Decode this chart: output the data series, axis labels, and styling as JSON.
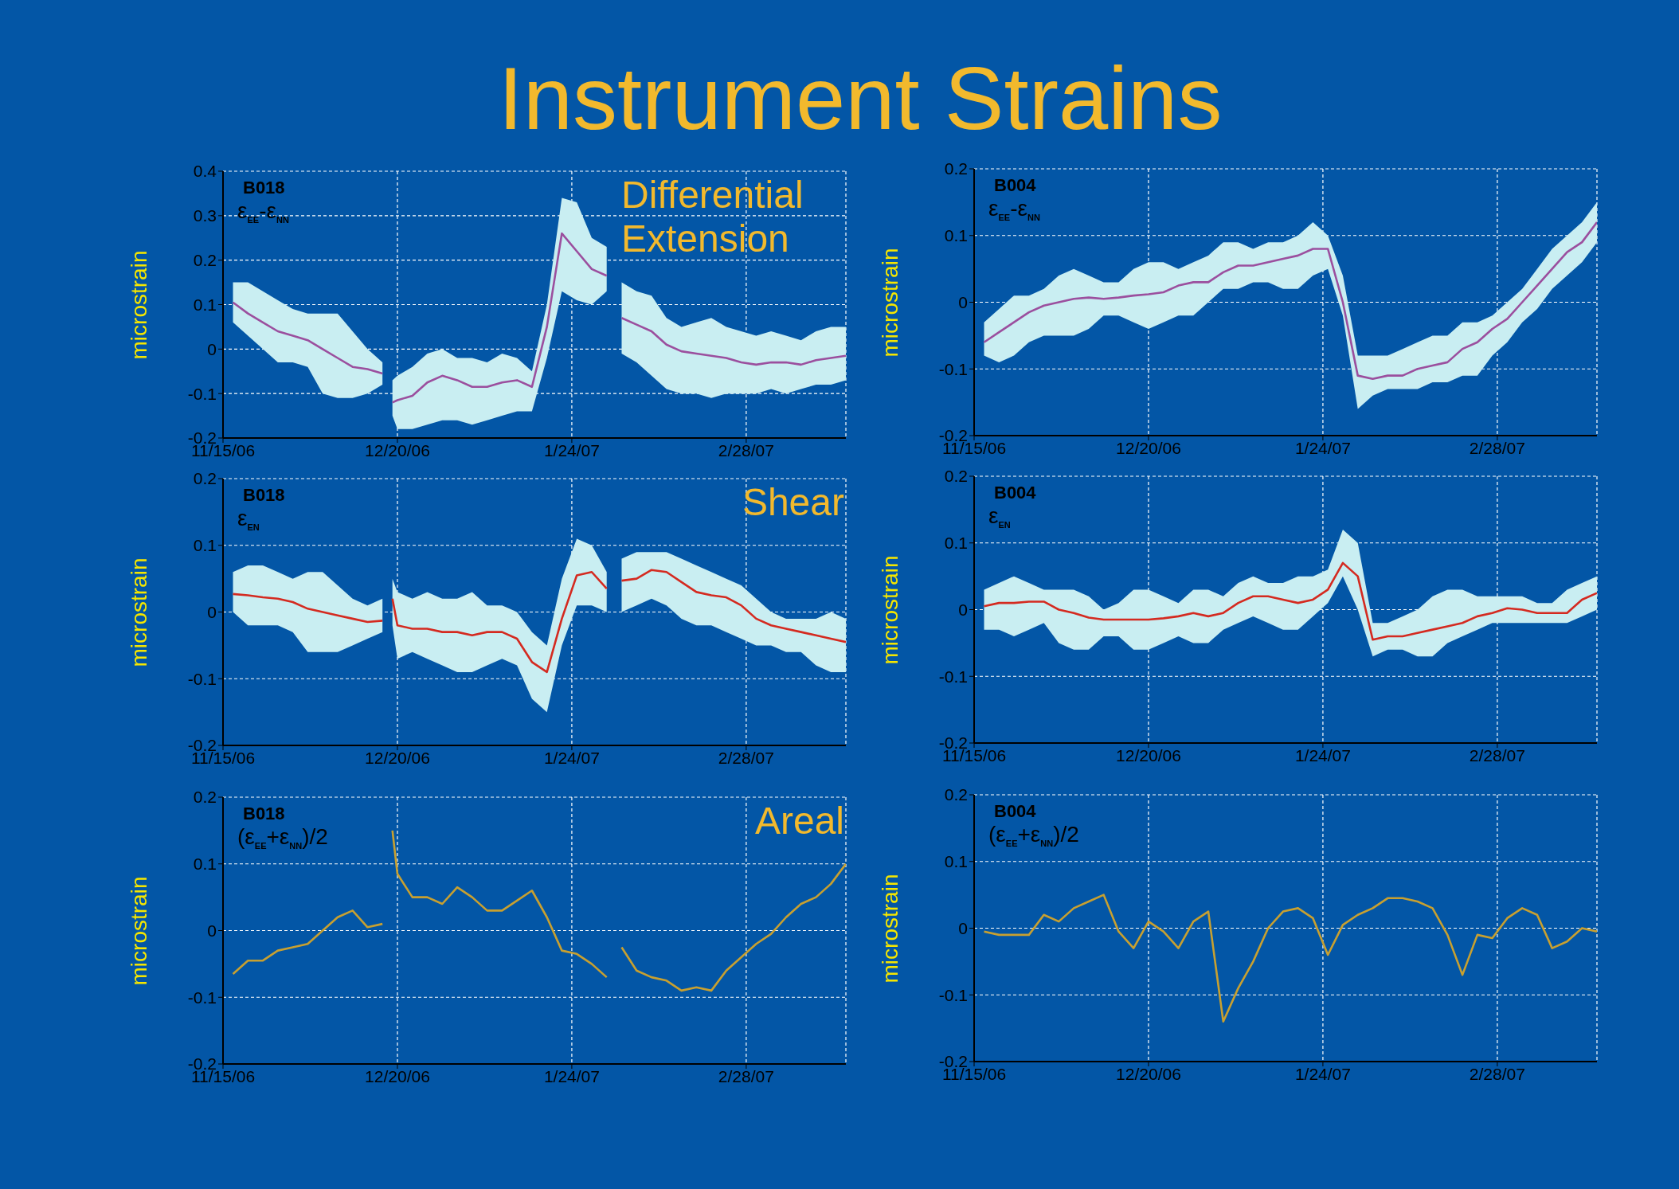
{
  "chart_data": [
    {
      "type": "line",
      "title": "Instrument Strains",
      "ylabel": "microstrain",
      "annotations": [
        "B018",
        "ε$_{EE}$-ε$_{NN}$",
        "Differential Extension"
      ],
      "x": [
        "2006-11-17",
        "2006-11-20",
        "2006-11-23",
        "2006-11-26",
        "2006-11-29",
        "2006-12-02",
        "2006-12-05",
        "2006-12-08",
        "2006-12-11",
        "2006-12-14",
        "2006-12-17",
        "2006-12-18",
        "2006-12-19",
        "2006-12-20",
        "2006-12-23",
        "2006-12-26",
        "2006-12-29",
        "2007-01-01",
        "2007-01-04",
        "2007-01-07",
        "2007-01-10",
        "2007-01-13",
        "2007-01-16",
        "2007-01-19",
        "2007-01-22",
        "2007-01-25",
        "2007-01-28",
        "2007-01-31",
        "2007-02-01",
        "2007-02-03",
        "2007-02-06",
        "2007-02-09",
        "2007-02-12",
        "2007-02-15",
        "2007-02-18",
        "2007-02-21",
        "2007-02-24",
        "2007-02-27",
        "2007-03-02",
        "2007-03-05",
        "2007-03-08",
        "2007-03-11",
        "2007-03-14",
        "2007-03-17",
        "2007-03-20"
      ],
      "series": [
        {
          "color": "#9b4f9e",
          "values": [
            0.105,
            0.08,
            0.06,
            0.04,
            0.03,
            0.02,
            0.0,
            -0.02,
            -0.04,
            -0.045,
            -0.055,
            null,
            -0.12,
            -0.115,
            -0.105,
            -0.075,
            -0.06,
            -0.07,
            -0.085,
            -0.085,
            -0.075,
            -0.07,
            -0.085,
            0.05,
            0.26,
            0.22,
            0.18,
            0.165,
            null,
            0.07,
            0.055,
            0.04,
            0.01,
            -0.005,
            -0.01,
            -0.015,
            -0.02,
            -0.03,
            -0.035,
            -0.03,
            -0.03,
            -0.035,
            -0.025,
            -0.02,
            -0.015
          ],
          "lower": [
            0.06,
            0.03,
            0.0,
            -0.03,
            -0.03,
            -0.04,
            -0.1,
            -0.11,
            -0.11,
            -0.1,
            -0.08,
            null,
            -0.15,
            -0.18,
            -0.18,
            -0.17,
            -0.16,
            -0.16,
            -0.17,
            -0.16,
            -0.15,
            -0.14,
            -0.14,
            -0.02,
            0.13,
            0.11,
            0.1,
            0.13,
            null,
            -0.01,
            -0.03,
            -0.06,
            -0.09,
            -0.1,
            -0.1,
            -0.11,
            -0.1,
            -0.1,
            -0.1,
            -0.09,
            -0.1,
            -0.09,
            -0.08,
            -0.08,
            -0.07
          ],
          "upper": [
            0.15,
            0.15,
            0.13,
            0.11,
            0.09,
            0.08,
            0.08,
            0.08,
            0.04,
            0.0,
            -0.03,
            null,
            -0.07,
            -0.06,
            -0.04,
            -0.01,
            0.0,
            -0.02,
            -0.02,
            -0.03,
            -0.01,
            -0.02,
            -0.05,
            0.1,
            0.34,
            0.33,
            0.25,
            0.23,
            null,
            0.15,
            0.13,
            0.12,
            0.07,
            0.05,
            0.06,
            0.07,
            0.05,
            0.04,
            0.03,
            0.04,
            0.03,
            0.02,
            0.04,
            0.05,
            0.05
          ]
        }
      ],
      "xlim": [
        "2006-11-15",
        "2007-03-20"
      ],
      "xticks": [
        {
          "value": "2006-11-15",
          "label": "11/15/06"
        },
        {
          "value": "2006-12-20",
          "label": "12/20/06"
        },
        {
          "value": "2007-01-24",
          "label": "1/24/07"
        },
        {
          "value": "2007-02-28",
          "label": "2/28/07"
        }
      ],
      "ylim": [
        -0.2,
        0.4
      ],
      "yticks": [
        -0.2,
        -0.1,
        0,
        0.1,
        0.2,
        0.3,
        0.4
      ],
      "grid": true
    },
    {
      "type": "line",
      "ylabel": "microstrain",
      "annotations": [
        "B004",
        "ε$_{EE}$-ε$_{NN}$"
      ],
      "x": [
        "2006-11-17",
        "2006-11-20",
        "2006-11-23",
        "2006-11-26",
        "2006-11-29",
        "2006-12-02",
        "2006-12-05",
        "2006-12-08",
        "2006-12-11",
        "2006-12-14",
        "2006-12-17",
        "2006-12-20",
        "2006-12-23",
        "2006-12-26",
        "2006-12-29",
        "2007-01-01",
        "2007-01-04",
        "2007-01-07",
        "2007-01-10",
        "2007-01-13",
        "2007-01-16",
        "2007-01-19",
        "2007-01-22",
        "2007-01-25",
        "2007-01-28",
        "2007-01-31",
        "2007-02-03",
        "2007-02-06",
        "2007-02-09",
        "2007-02-12",
        "2007-02-15",
        "2007-02-18",
        "2007-02-21",
        "2007-02-24",
        "2007-02-27",
        "2007-03-02",
        "2007-03-05",
        "2007-03-08",
        "2007-03-11",
        "2007-03-14",
        "2007-03-17",
        "2007-03-20"
      ],
      "series": [
        {
          "color": "#9b4f9e",
          "values": [
            -0.06,
            -0.045,
            -0.03,
            -0.015,
            -0.005,
            0.0,
            0.005,
            0.007,
            0.005,
            0.007,
            0.01,
            0.012,
            0.015,
            0.025,
            0.03,
            0.03,
            0.045,
            0.055,
            0.055,
            0.06,
            0.065,
            0.07,
            0.08,
            0.08,
            0.0,
            -0.11,
            -0.115,
            -0.11,
            -0.11,
            -0.1,
            -0.095,
            -0.09,
            -0.07,
            -0.06,
            -0.04,
            -0.025,
            0.0,
            0.025,
            0.05,
            0.075,
            0.09,
            0.12
          ],
          "lower": [
            -0.08,
            -0.09,
            -0.08,
            -0.06,
            -0.05,
            -0.05,
            -0.05,
            -0.04,
            -0.02,
            -0.02,
            -0.03,
            -0.04,
            -0.03,
            -0.02,
            -0.02,
            0.0,
            0.02,
            0.02,
            0.03,
            0.03,
            0.02,
            0.02,
            0.04,
            0.05,
            -0.02,
            -0.16,
            -0.14,
            -0.13,
            -0.13,
            -0.13,
            -0.12,
            -0.12,
            -0.11,
            -0.11,
            -0.08,
            -0.06,
            -0.03,
            -0.01,
            0.02,
            0.04,
            0.06,
            0.09
          ],
          "upper": [
            -0.03,
            -0.01,
            0.01,
            0.01,
            0.02,
            0.04,
            0.05,
            0.04,
            0.03,
            0.03,
            0.05,
            0.06,
            0.06,
            0.05,
            0.06,
            0.07,
            0.09,
            0.09,
            0.08,
            0.09,
            0.09,
            0.1,
            0.12,
            0.1,
            0.04,
            -0.08,
            -0.08,
            -0.08,
            -0.07,
            -0.06,
            -0.05,
            -0.05,
            -0.03,
            -0.03,
            -0.02,
            0.0,
            0.02,
            0.05,
            0.08,
            0.1,
            0.12,
            0.15
          ]
        }
      ],
      "xlim": [
        "2006-11-15",
        "2007-03-20"
      ],
      "xticks": [
        {
          "value": "2006-11-15",
          "label": "11/15/06"
        },
        {
          "value": "2006-12-20",
          "label": "12/20/06"
        },
        {
          "value": "2007-01-24",
          "label": "1/24/07"
        },
        {
          "value": "2007-02-28",
          "label": "2/28/07"
        }
      ],
      "ylim": [
        -0.2,
        0.2
      ],
      "yticks": [
        -0.2,
        -0.1,
        0,
        0.1,
        0.2
      ],
      "grid": true
    },
    {
      "type": "line",
      "ylabel": "microstrain",
      "annotations": [
        "B018",
        "ε$_{EN}$",
        "Shear"
      ],
      "x": [
        "2006-11-17",
        "2006-11-20",
        "2006-11-23",
        "2006-11-26",
        "2006-11-29",
        "2006-12-02",
        "2006-12-05",
        "2006-12-08",
        "2006-12-11",
        "2006-12-14",
        "2006-12-17",
        "2006-12-18",
        "2006-12-19",
        "2006-12-20",
        "2006-12-23",
        "2006-12-26",
        "2006-12-29",
        "2007-01-01",
        "2007-01-04",
        "2007-01-07",
        "2007-01-10",
        "2007-01-13",
        "2007-01-16",
        "2007-01-19",
        "2007-01-22",
        "2007-01-25",
        "2007-01-28",
        "2007-01-31",
        "2007-02-01",
        "2007-02-03",
        "2007-02-06",
        "2007-02-09",
        "2007-02-12",
        "2007-02-15",
        "2007-02-18",
        "2007-02-21",
        "2007-02-24",
        "2007-02-27",
        "2007-03-02",
        "2007-03-05",
        "2007-03-08",
        "2007-03-11",
        "2007-03-14",
        "2007-03-17",
        "2007-03-20"
      ],
      "series": [
        {
          "color": "#d42a20",
          "values": [
            0.027,
            0.025,
            0.022,
            0.02,
            0.015,
            0.005,
            0.0,
            -0.005,
            -0.01,
            -0.015,
            -0.013,
            null,
            0.02,
            -0.02,
            -0.025,
            -0.025,
            -0.03,
            -0.03,
            -0.035,
            -0.03,
            -0.03,
            -0.04,
            -0.075,
            -0.09,
            -0.01,
            0.055,
            0.06,
            0.035,
            null,
            0.047,
            0.05,
            0.063,
            0.06,
            0.045,
            0.03,
            0.025,
            0.022,
            0.01,
            -0.01,
            -0.02,
            -0.025,
            -0.03,
            -0.035,
            -0.04,
            -0.045
          ],
          "lower": [
            0.0,
            -0.02,
            -0.02,
            -0.02,
            -0.03,
            -0.06,
            -0.06,
            -0.06,
            -0.05,
            -0.04,
            -0.03,
            null,
            -0.02,
            -0.07,
            -0.06,
            -0.07,
            -0.08,
            -0.09,
            -0.09,
            -0.08,
            -0.07,
            -0.08,
            -0.13,
            -0.15,
            -0.05,
            0.01,
            0.01,
            0.0,
            null,
            0.0,
            0.01,
            0.02,
            0.01,
            -0.01,
            -0.02,
            -0.02,
            -0.03,
            -0.04,
            -0.05,
            -0.05,
            -0.06,
            -0.06,
            -0.08,
            -0.09,
            -0.09
          ],
          "upper": [
            0.06,
            0.07,
            0.07,
            0.06,
            0.05,
            0.06,
            0.06,
            0.04,
            0.02,
            0.01,
            0.02,
            null,
            0.05,
            0.03,
            0.02,
            0.03,
            0.02,
            0.02,
            0.03,
            0.01,
            0.01,
            0.0,
            -0.03,
            -0.05,
            0.05,
            0.11,
            0.1,
            0.06,
            null,
            0.08,
            0.09,
            0.09,
            0.09,
            0.08,
            0.07,
            0.06,
            0.05,
            0.04,
            0.02,
            0.0,
            -0.01,
            -0.01,
            -0.01,
            0.0,
            -0.01
          ]
        }
      ],
      "xlim": [
        "2006-11-15",
        "2007-03-20"
      ],
      "xticks": [
        {
          "value": "2006-11-15",
          "label": "11/15/06"
        },
        {
          "value": "2006-12-20",
          "label": "12/20/06"
        },
        {
          "value": "2007-01-24",
          "label": "1/24/07"
        },
        {
          "value": "2007-02-28",
          "label": "2/28/07"
        }
      ],
      "ylim": [
        -0.2,
        0.2
      ],
      "yticks": [
        -0.2,
        -0.1,
        0,
        0.1,
        0.2
      ],
      "grid": true
    },
    {
      "type": "line",
      "ylabel": "microstrain",
      "annotations": [
        "B004",
        "ε$_{EN}$"
      ],
      "x": [
        "2006-11-17",
        "2006-11-20",
        "2006-11-23",
        "2006-11-26",
        "2006-11-29",
        "2006-12-02",
        "2006-12-05",
        "2006-12-08",
        "2006-12-11",
        "2006-12-14",
        "2006-12-17",
        "2006-12-20",
        "2006-12-23",
        "2006-12-26",
        "2006-12-29",
        "2007-01-01",
        "2007-01-04",
        "2007-01-07",
        "2007-01-10",
        "2007-01-13",
        "2007-01-16",
        "2007-01-19",
        "2007-01-22",
        "2007-01-25",
        "2007-01-28",
        "2007-01-31",
        "2007-02-03",
        "2007-02-06",
        "2007-02-09",
        "2007-02-12",
        "2007-02-15",
        "2007-02-18",
        "2007-02-21",
        "2007-02-24",
        "2007-02-27",
        "2007-03-02",
        "2007-03-05",
        "2007-03-08",
        "2007-03-11",
        "2007-03-14",
        "2007-03-17",
        "2007-03-20"
      ],
      "series": [
        {
          "color": "#d42a20",
          "values": [
            0.005,
            0.01,
            0.01,
            0.012,
            0.012,
            0.0,
            -0.005,
            -0.012,
            -0.015,
            -0.015,
            -0.015,
            -0.015,
            -0.013,
            -0.01,
            -0.005,
            -0.01,
            -0.005,
            0.01,
            0.02,
            0.02,
            0.015,
            0.01,
            0.015,
            0.03,
            0.07,
            0.05,
            -0.045,
            -0.04,
            -0.04,
            -0.035,
            -0.03,
            -0.025,
            -0.02,
            -0.01,
            -0.005,
            0.002,
            0.0,
            -0.005,
            -0.005,
            -0.005,
            0.015,
            0.025
          ],
          "lower": [
            -0.03,
            -0.03,
            -0.04,
            -0.03,
            -0.02,
            -0.05,
            -0.06,
            -0.06,
            -0.04,
            -0.04,
            -0.06,
            -0.06,
            -0.05,
            -0.04,
            -0.05,
            -0.05,
            -0.03,
            -0.02,
            -0.01,
            -0.02,
            -0.03,
            -0.03,
            -0.01,
            0.01,
            0.05,
            0.0,
            -0.07,
            -0.06,
            -0.06,
            -0.07,
            -0.07,
            -0.05,
            -0.04,
            -0.03,
            -0.02,
            -0.02,
            -0.02,
            -0.02,
            -0.02,
            -0.02,
            -0.01,
            0.0
          ],
          "upper": [
            0.03,
            0.04,
            0.05,
            0.04,
            0.03,
            0.03,
            0.03,
            0.02,
            0.0,
            0.01,
            0.03,
            0.03,
            0.02,
            0.01,
            0.03,
            0.03,
            0.02,
            0.04,
            0.05,
            0.04,
            0.04,
            0.05,
            0.05,
            0.06,
            0.12,
            0.1,
            -0.02,
            -0.02,
            -0.01,
            0.0,
            0.02,
            0.03,
            0.03,
            0.02,
            0.02,
            0.02,
            0.02,
            0.01,
            0.01,
            0.03,
            0.04,
            0.05
          ]
        }
      ],
      "xlim": [
        "2006-11-15",
        "2007-03-20"
      ],
      "xticks": [
        {
          "value": "2006-11-15",
          "label": "11/15/06"
        },
        {
          "value": "2006-12-20",
          "label": "12/20/06"
        },
        {
          "value": "2007-01-24",
          "label": "1/24/07"
        },
        {
          "value": "2007-02-28",
          "label": "2/28/07"
        }
      ],
      "ylim": [
        -0.2,
        0.2
      ],
      "yticks": [
        -0.2,
        -0.1,
        0,
        0.1,
        0.2
      ],
      "grid": true
    },
    {
      "type": "line",
      "ylabel": "microstrain",
      "annotations": [
        "B018",
        "(ε$_{EE}$+ε$_{NN}$)/2",
        "Areal"
      ],
      "x": [
        "2006-11-17",
        "2006-11-20",
        "2006-11-23",
        "2006-11-26",
        "2006-11-29",
        "2006-12-02",
        "2006-12-05",
        "2006-12-08",
        "2006-12-11",
        "2006-12-14",
        "2006-12-17",
        "2006-12-18",
        "2006-12-19",
        "2006-12-20",
        "2006-12-23",
        "2006-12-26",
        "2006-12-29",
        "2007-01-01",
        "2007-01-04",
        "2007-01-07",
        "2007-01-10",
        "2007-01-13",
        "2007-01-16",
        "2007-01-19",
        "2007-01-22",
        "2007-01-25",
        "2007-01-28",
        "2007-01-31",
        "2007-02-01",
        "2007-02-03",
        "2007-02-06",
        "2007-02-09",
        "2007-02-12",
        "2007-02-15",
        "2007-02-18",
        "2007-02-21",
        "2007-02-24",
        "2007-02-27",
        "2007-03-02",
        "2007-03-05",
        "2007-03-08",
        "2007-03-11",
        "2007-03-14",
        "2007-03-17",
        "2007-03-20"
      ],
      "series": [
        {
          "color": "#c8a030",
          "values": [
            -0.065,
            -0.045,
            -0.045,
            -0.03,
            -0.025,
            -0.02,
            0.0,
            0.02,
            0.03,
            0.005,
            0.01,
            null,
            0.15,
            0.085,
            0.05,
            0.05,
            0.04,
            0.065,
            0.05,
            0.03,
            0.03,
            0.045,
            0.06,
            0.02,
            -0.03,
            -0.035,
            -0.05,
            -0.07,
            null,
            -0.025,
            -0.06,
            -0.07,
            -0.075,
            -0.09,
            -0.085,
            -0.09,
            -0.06,
            -0.04,
            -0.02,
            -0.005,
            0.02,
            0.04,
            0.05,
            0.07,
            0.1
          ]
        }
      ],
      "xlim": [
        "2006-11-15",
        "2007-03-20"
      ],
      "xticks": [
        {
          "value": "2006-11-15",
          "label": "11/15/06"
        },
        {
          "value": "2006-12-20",
          "label": "12/20/06"
        },
        {
          "value": "2007-01-24",
          "label": "1/24/07"
        },
        {
          "value": "2007-02-28",
          "label": "2/28/07"
        }
      ],
      "ylim": [
        -0.2,
        0.2
      ],
      "yticks": [
        -0.2,
        -0.1,
        0,
        0.1,
        0.2
      ],
      "grid": true
    },
    {
      "type": "line",
      "ylabel": "microstrain",
      "annotations": [
        "B004",
        "(ε$_{EE}$+ε$_{NN}$)/2"
      ],
      "x": [
        "2006-11-17",
        "2006-11-20",
        "2006-11-23",
        "2006-11-26",
        "2006-11-29",
        "2006-12-02",
        "2006-12-05",
        "2006-12-08",
        "2006-12-11",
        "2006-12-14",
        "2006-12-17",
        "2006-12-20",
        "2006-12-23",
        "2006-12-26",
        "2006-12-29",
        "2007-01-01",
        "2007-01-04",
        "2007-01-07",
        "2007-01-10",
        "2007-01-13",
        "2007-01-16",
        "2007-01-19",
        "2007-01-22",
        "2007-01-25",
        "2007-01-28",
        "2007-01-31",
        "2007-02-03",
        "2007-02-06",
        "2007-02-09",
        "2007-02-12",
        "2007-02-15",
        "2007-02-18",
        "2007-02-21",
        "2007-02-24",
        "2007-02-27",
        "2007-03-02",
        "2007-03-05",
        "2007-03-08",
        "2007-03-11",
        "2007-03-14",
        "2007-03-17",
        "2007-03-20"
      ],
      "series": [
        {
          "color": "#c8a030",
          "values": [
            -0.005,
            -0.01,
            -0.01,
            -0.01,
            0.02,
            0.01,
            0.03,
            0.04,
            0.05,
            -0.005,
            -0.03,
            0.01,
            -0.005,
            -0.03,
            0.01,
            0.025,
            -0.14,
            -0.09,
            -0.05,
            0.0,
            0.025,
            0.03,
            0.015,
            -0.04,
            0.005,
            0.02,
            0.03,
            0.045,
            0.045,
            0.04,
            0.03,
            -0.01,
            -0.07,
            -0.01,
            -0.015,
            0.015,
            0.03,
            0.02,
            -0.03,
            -0.02,
            0.0,
            -0.005
          ]
        }
      ],
      "xlim": [
        "2006-11-15",
        "2007-03-20"
      ],
      "xticks": [
        {
          "value": "2006-11-15",
          "label": "11/15/06"
        },
        {
          "value": "2006-12-20",
          "label": "12/20/06"
        },
        {
          "value": "2007-01-24",
          "label": "1/24/07"
        },
        {
          "value": "2007-02-28",
          "label": "2/28/07"
        }
      ],
      "ylim": [
        -0.2,
        0.2
      ],
      "yticks": [
        -0.2,
        -0.1,
        0,
        0.1,
        0.2
      ],
      "grid": true
    }
  ]
}
